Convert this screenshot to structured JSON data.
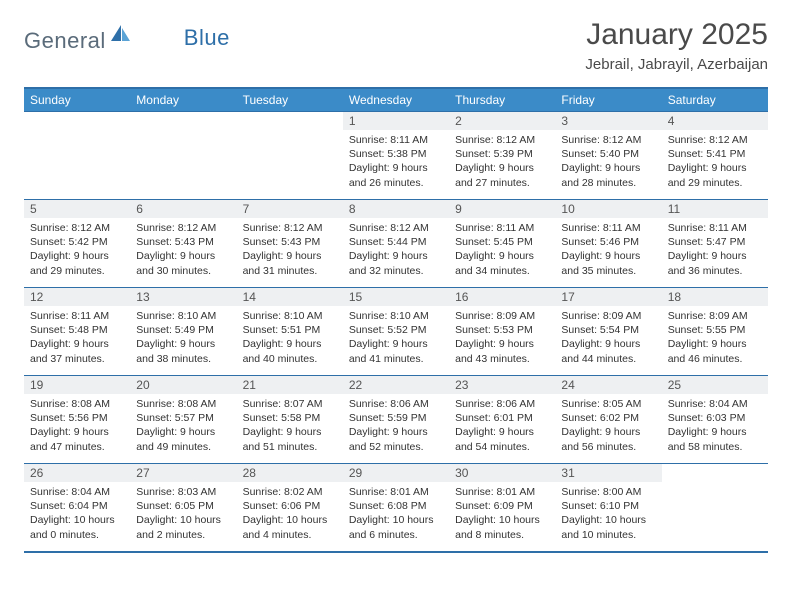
{
  "brand": {
    "part1": "General",
    "part2": "Blue"
  },
  "title": "January 2025",
  "location": "Jebrail, Jabrayil, Azerbaijan",
  "colors": {
    "header_bg": "#3b8bc8",
    "border": "#2e6fa8",
    "daynum_bg": "#eef0f2",
    "text": "#333333",
    "logo_grey": "#5a6b7a",
    "logo_blue": "#2e6fa8"
  },
  "layout": {
    "columns": 7,
    "rows": 5,
    "first_weekday_index": 3
  },
  "weekdays": [
    "Sunday",
    "Monday",
    "Tuesday",
    "Wednesday",
    "Thursday",
    "Friday",
    "Saturday"
  ],
  "days": [
    {
      "n": 1,
      "sr": "8:11 AM",
      "ss": "5:38 PM",
      "dh": 9,
      "dm": 26
    },
    {
      "n": 2,
      "sr": "8:12 AM",
      "ss": "5:39 PM",
      "dh": 9,
      "dm": 27
    },
    {
      "n": 3,
      "sr": "8:12 AM",
      "ss": "5:40 PM",
      "dh": 9,
      "dm": 28
    },
    {
      "n": 4,
      "sr": "8:12 AM",
      "ss": "5:41 PM",
      "dh": 9,
      "dm": 29
    },
    {
      "n": 5,
      "sr": "8:12 AM",
      "ss": "5:42 PM",
      "dh": 9,
      "dm": 29
    },
    {
      "n": 6,
      "sr": "8:12 AM",
      "ss": "5:43 PM",
      "dh": 9,
      "dm": 30
    },
    {
      "n": 7,
      "sr": "8:12 AM",
      "ss": "5:43 PM",
      "dh": 9,
      "dm": 31
    },
    {
      "n": 8,
      "sr": "8:12 AM",
      "ss": "5:44 PM",
      "dh": 9,
      "dm": 32
    },
    {
      "n": 9,
      "sr": "8:11 AM",
      "ss": "5:45 PM",
      "dh": 9,
      "dm": 34
    },
    {
      "n": 10,
      "sr": "8:11 AM",
      "ss": "5:46 PM",
      "dh": 9,
      "dm": 35
    },
    {
      "n": 11,
      "sr": "8:11 AM",
      "ss": "5:47 PM",
      "dh": 9,
      "dm": 36
    },
    {
      "n": 12,
      "sr": "8:11 AM",
      "ss": "5:48 PM",
      "dh": 9,
      "dm": 37
    },
    {
      "n": 13,
      "sr": "8:10 AM",
      "ss": "5:49 PM",
      "dh": 9,
      "dm": 38
    },
    {
      "n": 14,
      "sr": "8:10 AM",
      "ss": "5:51 PM",
      "dh": 9,
      "dm": 40
    },
    {
      "n": 15,
      "sr": "8:10 AM",
      "ss": "5:52 PM",
      "dh": 9,
      "dm": 41
    },
    {
      "n": 16,
      "sr": "8:09 AM",
      "ss": "5:53 PM",
      "dh": 9,
      "dm": 43
    },
    {
      "n": 17,
      "sr": "8:09 AM",
      "ss": "5:54 PM",
      "dh": 9,
      "dm": 44
    },
    {
      "n": 18,
      "sr": "8:09 AM",
      "ss": "5:55 PM",
      "dh": 9,
      "dm": 46
    },
    {
      "n": 19,
      "sr": "8:08 AM",
      "ss": "5:56 PM",
      "dh": 9,
      "dm": 47
    },
    {
      "n": 20,
      "sr": "8:08 AM",
      "ss": "5:57 PM",
      "dh": 9,
      "dm": 49
    },
    {
      "n": 21,
      "sr": "8:07 AM",
      "ss": "5:58 PM",
      "dh": 9,
      "dm": 51
    },
    {
      "n": 22,
      "sr": "8:06 AM",
      "ss": "5:59 PM",
      "dh": 9,
      "dm": 52
    },
    {
      "n": 23,
      "sr": "8:06 AM",
      "ss": "6:01 PM",
      "dh": 9,
      "dm": 54
    },
    {
      "n": 24,
      "sr": "8:05 AM",
      "ss": "6:02 PM",
      "dh": 9,
      "dm": 56
    },
    {
      "n": 25,
      "sr": "8:04 AM",
      "ss": "6:03 PM",
      "dh": 9,
      "dm": 58
    },
    {
      "n": 26,
      "sr": "8:04 AM",
      "ss": "6:04 PM",
      "dh": 10,
      "dm": 0
    },
    {
      "n": 27,
      "sr": "8:03 AM",
      "ss": "6:05 PM",
      "dh": 10,
      "dm": 2
    },
    {
      "n": 28,
      "sr": "8:02 AM",
      "ss": "6:06 PM",
      "dh": 10,
      "dm": 4
    },
    {
      "n": 29,
      "sr": "8:01 AM",
      "ss": "6:08 PM",
      "dh": 10,
      "dm": 6
    },
    {
      "n": 30,
      "sr": "8:01 AM",
      "ss": "6:09 PM",
      "dh": 10,
      "dm": 8
    },
    {
      "n": 31,
      "sr": "8:00 AM",
      "ss": "6:10 PM",
      "dh": 10,
      "dm": 10
    }
  ],
  "labels": {
    "sunrise": "Sunrise:",
    "sunset": "Sunset:",
    "daylight": "Daylight:",
    "hours": "hours",
    "and": "and",
    "minutes": "minutes."
  }
}
